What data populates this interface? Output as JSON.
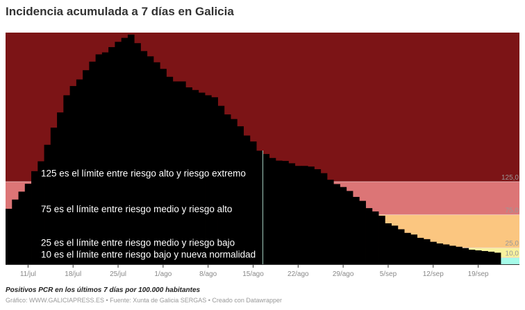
{
  "title": "Incidencia acumulada a 7 días en Galicia",
  "description": "Positivos PCR en los últimos 7 días por 100.000 habitantes",
  "footer": "Gráfico: WWW.GALICIAPRESS.ES • Fuente: Xunta de Galicia SERGAS • Creado con Datawrapper",
  "chart_data": {
    "type": "area",
    "title": "Incidencia acumulada a 7 días en Galicia",
    "xlabel": "",
    "ylabel": "",
    "x_start": "8/jul",
    "x_end": "22/sep",
    "ylim": [
      0,
      351
    ],
    "series_color": "#000000",
    "values": [
      84,
      98,
      110,
      122,
      141,
      156,
      181,
      207,
      230,
      256,
      270,
      280,
      294,
      307,
      318,
      321,
      329,
      337,
      343,
      348,
      335,
      323,
      315,
      306,
      296,
      284,
      277,
      277,
      268,
      264,
      260,
      256,
      253,
      240,
      227,
      220,
      209,
      195,
      186,
      172,
      167,
      161,
      157,
      156.5,
      153,
      149,
      149,
      148,
      144,
      138,
      128,
      121.5,
      117,
      111,
      102,
      96,
      85,
      80,
      73.5,
      62,
      58.5,
      53,
      47.5,
      45,
      40,
      38,
      34,
      31.5,
      30,
      28,
      26.5,
      24.5,
      22,
      21,
      20,
      19,
      17.5
    ],
    "x_ticks": [
      {
        "label": "11/jul",
        "index": 3
      },
      {
        "label": "18/jul",
        "index": 10
      },
      {
        "label": "25/jul",
        "index": 17
      },
      {
        "label": "1/ago",
        "index": 24
      },
      {
        "label": "8/ago",
        "index": 31
      },
      {
        "label": "15/ago",
        "index": 38
      },
      {
        "label": "22/ago",
        "index": 45
      },
      {
        "label": "29/ago",
        "index": 52
      },
      {
        "label": "5/sep",
        "index": 59
      },
      {
        "label": "12/sep",
        "index": 66
      },
      {
        "label": "19/sep",
        "index": 73
      }
    ],
    "bands": [
      {
        "from": 0,
        "to": 10,
        "color": "#a6fbe9",
        "label": ""
      },
      {
        "from": 10,
        "to": 25,
        "color": "#f8f29e",
        "label": "10,0"
      },
      {
        "from": 25,
        "to": 75,
        "color": "#fbc680",
        "label": "25,0"
      },
      {
        "from": 75,
        "to": 125,
        "color": "#dc7576",
        "label": "75,0"
      },
      {
        "from": 125,
        "to": 351,
        "color": "#7c1416",
        "label": "125,0"
      }
    ],
    "annotations": [
      {
        "text": "125 es el límite entre riesgo alto y riesgo extremo",
        "y": 138
      },
      {
        "text": "75 es el límite entre riesgo medio y riesgo alto",
        "y": 84
      },
      {
        "text": "25 es el límite entre riesgo medio y riesgo bajo",
        "y": 33
      },
      {
        "text": "10 es el límite entre riesgo bajo y nueva normalidad",
        "y": 15
      }
    ],
    "grid": false,
    "legend": "none"
  }
}
